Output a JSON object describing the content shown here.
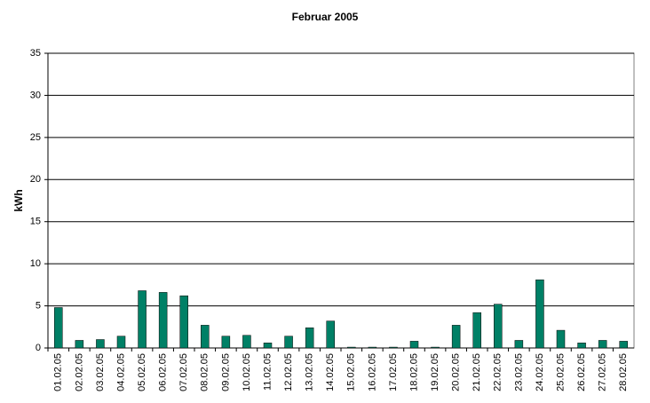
{
  "chart_data": {
    "type": "bar",
    "title": "Februar 2005",
    "y_label": "kWh",
    "categories": [
      "01.02.05",
      "02.02.05",
      "03.02.05",
      "04.02.05",
      "05.02.05",
      "06.02.05",
      "07.02.05",
      "08.02.05",
      "09.02.05",
      "10.02.05",
      "11.02.05",
      "12.02.05",
      "13.02.05",
      "14.02.05",
      "15.02.05",
      "16.02.05",
      "17.02.05",
      "18.02.05",
      "19.02.05",
      "20.02.05",
      "21.02.05",
      "22.02.05",
      "23.02.05",
      "24.02.05",
      "25.02.05",
      "26.02.05",
      "27.02.05",
      "28.02.05"
    ],
    "values": [
      4.8,
      0.9,
      1.0,
      1.4,
      6.8,
      6.6,
      6.2,
      2.7,
      1.4,
      1.5,
      0.6,
      1.4,
      2.4,
      3.2,
      0.1,
      0.1,
      0.1,
      0.8,
      0.1,
      2.7,
      4.2,
      5.2,
      0.9,
      8.1,
      2.1,
      0.6,
      0.9,
      0.8
    ],
    "color": "#008066",
    "ylim": [
      0,
      35
    ],
    "yticks": [
      0,
      5,
      10,
      15,
      20,
      25,
      30,
      35
    ],
    "grid": true
  }
}
